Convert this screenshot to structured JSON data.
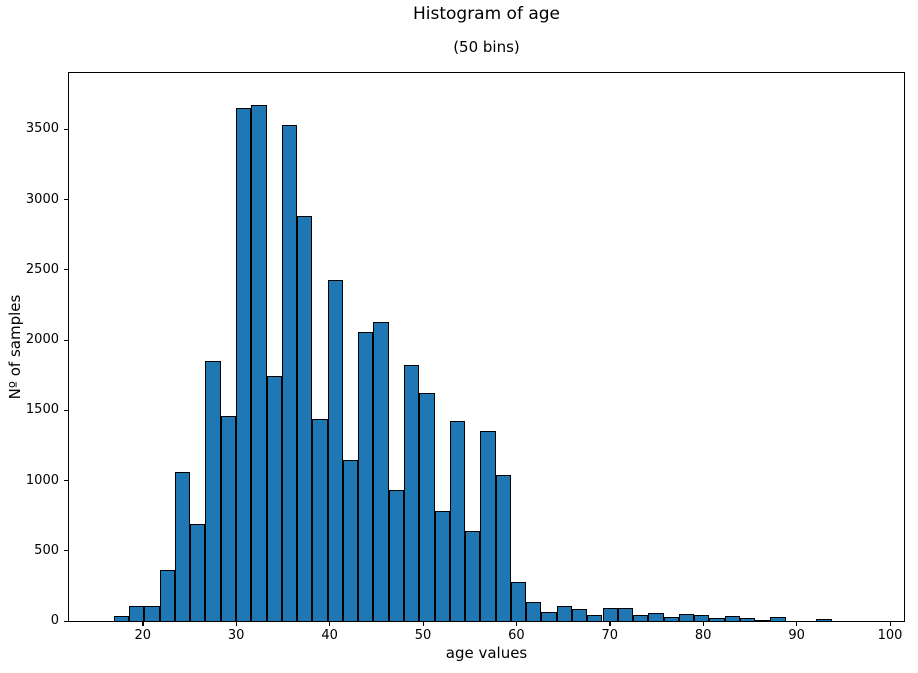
{
  "figure": {
    "title": "Histogram of age",
    "subtitle": "(50 bins)",
    "xlabel": "age values",
    "ylabel": "Nº of samples"
  },
  "chart_data": {
    "type": "bar",
    "subtype": "histogram",
    "title": "Histogram of age",
    "subtitle": "(50 bins)",
    "xlabel": "age values",
    "ylabel": "Nº of samples",
    "n_bins": 50,
    "bin_start": 16.9,
    "bin_width": 1.635,
    "values": [
      35,
      110,
      110,
      365,
      1060,
      690,
      1850,
      1460,
      3650,
      3670,
      1745,
      3530,
      2880,
      1440,
      2430,
      1145,
      2060,
      2130,
      930,
      1820,
      1625,
      780,
      1420,
      640,
      1350,
      1040,
      280,
      135,
      65,
      105,
      85,
      40,
      95,
      95,
      40,
      55,
      30,
      50,
      45,
      25,
      35,
      25,
      10,
      30,
      3,
      2,
      12,
      2,
      1,
      1
    ],
    "x_ticks": [
      20,
      30,
      40,
      50,
      60,
      70,
      80,
      90,
      100
    ],
    "y_ticks": [
      0,
      500,
      1000,
      1500,
      2000,
      2500,
      3000,
      3500
    ],
    "xlim": [
      12.1,
      101.5
    ],
    "ylim": [
      0,
      3900
    ],
    "grid": false,
    "legend": null,
    "bar_color": "#1f77b4",
    "bar_edge_color": "#000000",
    "background_color": "#ffffff"
  }
}
